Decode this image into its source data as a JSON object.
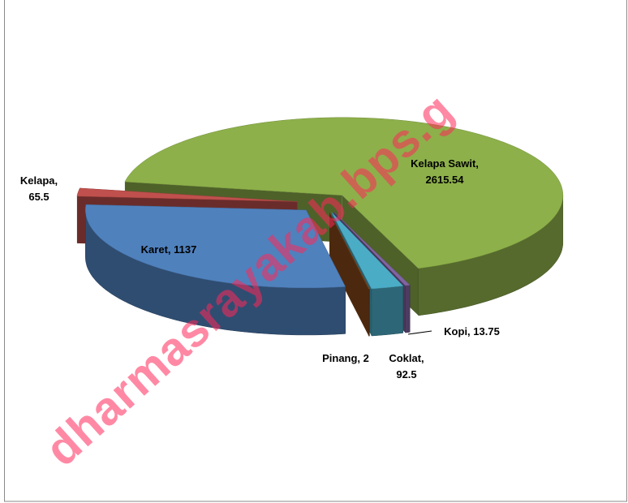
{
  "chart_data": {
    "type": "pie",
    "labels": [
      "Kelapa Sawit, 2615.54",
      "Kopi, 13.75",
      "Coklat, 92.5",
      "Pinang, 2",
      "Karet, 1137",
      "Kelapa, 65.5"
    ],
    "values": [
      2615.54,
      13.75,
      92.5,
      2,
      1137,
      65.5
    ],
    "colors": [
      "#8db04a",
      "#8064a2",
      "#4bacc6",
      "#8b4a1a",
      "#4f81bd",
      "#c0504d"
    ],
    "watermark": "dharmasrayakab.bps.g"
  }
}
